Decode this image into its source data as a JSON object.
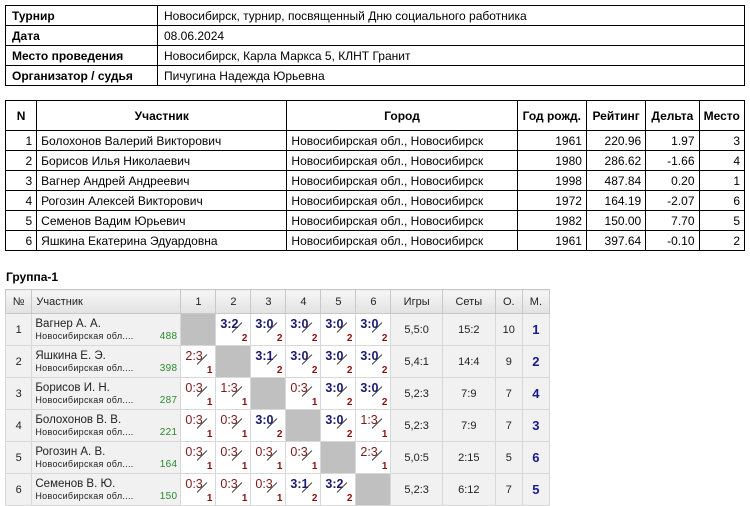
{
  "info": [
    {
      "k": "Турнир",
      "v": "Новосибирск, турнир, посвященный Дню социального работника"
    },
    {
      "k": "Дата",
      "v": "08.06.2024"
    },
    {
      "k": "Место проведения",
      "v": "Новосибирск, Карла Маркса 5, КЛНТ Гранит"
    },
    {
      "k": "Организатор / судья",
      "v": "Пичугина Надежда Юрьевна"
    }
  ],
  "participants": {
    "headers": [
      "N",
      "Участник",
      "Город",
      "Год рожд.",
      "Рейтинг",
      "Дельта",
      "Место"
    ],
    "rows": [
      [
        "1",
        "Болохонов Валерий Викторович",
        "Новосибирская обл., Новосибирск",
        "1961",
        "220.96",
        "1.97",
        "3"
      ],
      [
        "2",
        "Борисов Илья Николаевич",
        "Новосибирская обл., Новосибирск",
        "1980",
        "286.62",
        "-1.66",
        "4"
      ],
      [
        "3",
        "Вагнер Андрей Андреевич",
        "Новосибирская обл., Новосибирск",
        "1998",
        "487.84",
        "0.20",
        "1"
      ],
      [
        "4",
        "Рогозин Алексей Викторович",
        "Новосибирская обл., Новосибирск",
        "1972",
        "164.19",
        "-2.07",
        "6"
      ],
      [
        "5",
        "Семенов Вадим Юрьевич",
        "Новосибирская обл., Новосибирск",
        "1982",
        "150.00",
        "7.70",
        "5"
      ],
      [
        "6",
        "Яшкина Екатерина Эдуардовна",
        "Новосибирская обл., Новосибирск",
        "1961",
        "397.64",
        "-0.10",
        "2"
      ]
    ]
  },
  "group": {
    "title": "Группа-1",
    "headers": [
      "№",
      "Участник",
      "1",
      "2",
      "3",
      "4",
      "5",
      "6",
      "Игры",
      "Сеты",
      "О.",
      "М."
    ],
    "rows": [
      {
        "n": "1",
        "name": "Вагнер А. А.",
        "region": "Новосибирская обл....",
        "rating": "488",
        "res": [
          null,
          "3:2",
          "3:0",
          "3:0",
          "3:0",
          "3:0"
        ],
        "games": "5,5:0",
        "sets": "15:2",
        "pts": "10",
        "place": "1"
      },
      {
        "n": "2",
        "name": "Яшкина Е. Э.",
        "region": "Новосибирская обл....",
        "rating": "398",
        "res": [
          "2:3",
          null,
          "3:1",
          "3:0",
          "3:0",
          "3:0"
        ],
        "games": "5,4:1",
        "sets": "14:4",
        "pts": "9",
        "place": "2"
      },
      {
        "n": "3",
        "name": "Борисов И. Н.",
        "region": "Новосибирская обл....",
        "rating": "287",
        "res": [
          "0:3",
          "1:3",
          null,
          "0:3",
          "3:0",
          "3:0"
        ],
        "games": "5,2:3",
        "sets": "7:9",
        "pts": "7",
        "place": "4"
      },
      {
        "n": "4",
        "name": "Болохонов В. В.",
        "region": "Новосибирская обл....",
        "rating": "221",
        "res": [
          "0:3",
          "0:3",
          "3:0",
          null,
          "3:0",
          "1:3"
        ],
        "games": "5,2:3",
        "sets": "7:9",
        "pts": "7",
        "place": "3"
      },
      {
        "n": "5",
        "name": "Рогозин А. В.",
        "region": "Новосибирская обл....",
        "rating": "164",
        "res": [
          "0:3",
          "0:3",
          "0:3",
          "0:3",
          null,
          "2:3"
        ],
        "games": "5,0:5",
        "sets": "2:15",
        "pts": "5",
        "place": "6"
      },
      {
        "n": "6",
        "name": "Семенов В. Ю.",
        "region": "Новосибирская обл....",
        "rating": "150",
        "res": [
          "0:3",
          "0:3",
          "0:3",
          "3:1",
          "3:2",
          null
        ],
        "games": "5,2:3",
        "sets": "6:12",
        "pts": "7",
        "place": "5"
      }
    ]
  },
  "colors": {
    "win": "#1a1a6e",
    "loss": "#7a1a1a",
    "rating": "#2a8a2a",
    "self_cell": "#c0c0c0"
  }
}
